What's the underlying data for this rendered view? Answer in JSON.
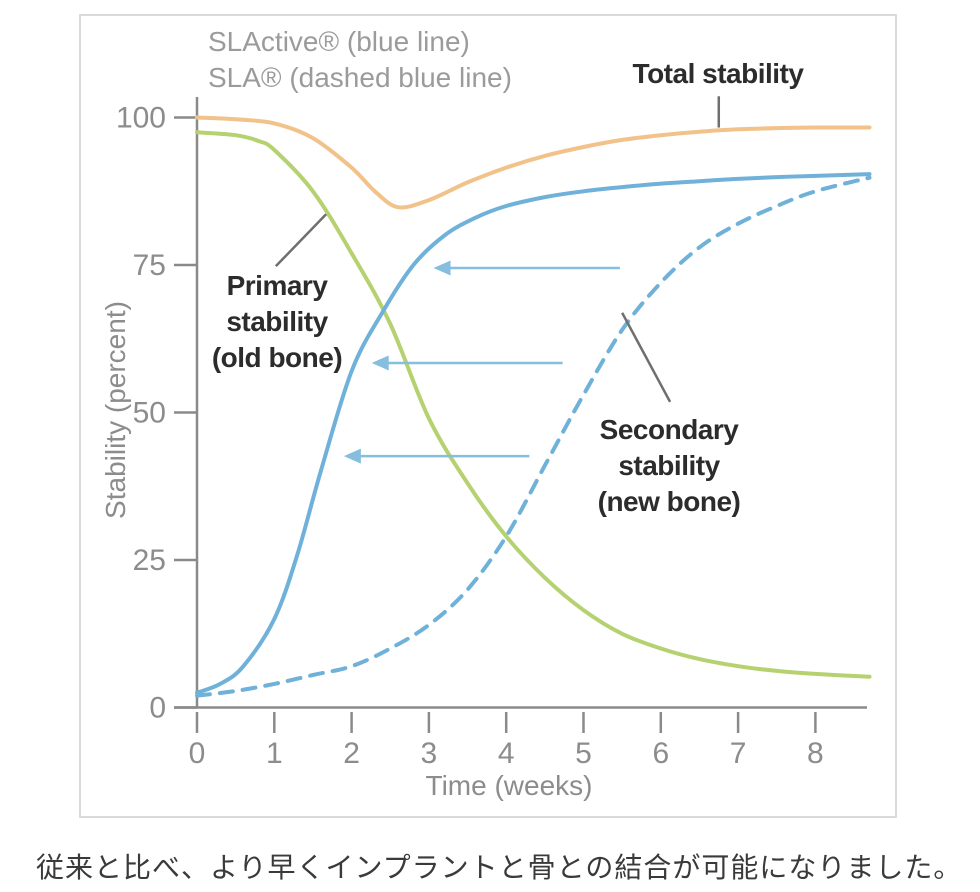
{
  "legend": {
    "line1": "SLActive® (blue line)",
    "line2": "SLA® (dashed blue line)",
    "text_color": "#9b9b9b"
  },
  "annotations": {
    "total": {
      "label": "Total stability"
    },
    "primary": {
      "lines": [
        "Primary",
        "stability",
        "(old bone)"
      ]
    },
    "secondary": {
      "lines": [
        "Secondary",
        "stability",
        "(new bone)"
      ]
    }
  },
  "axes": {
    "y_title": "Stability (percent)",
    "x_title": "Time (weeks)"
  },
  "caption": "従来と比べ、より早くインプラントと骨との結合が可能になりました。",
  "chart_data": {
    "type": "line",
    "title": "",
    "xlabel": "Time (weeks)",
    "ylabel": "Stability (percent)",
    "xlim": [
      0,
      8.7
    ],
    "ylim": [
      0,
      104
    ],
    "x_ticks": [
      0,
      1,
      2,
      3,
      4,
      5,
      6,
      7,
      8
    ],
    "y_ticks": [
      0,
      25,
      50,
      75,
      100
    ],
    "grid": false,
    "legend_position": "top-left",
    "axis_color": "#8a8a8a",
    "tick_label_color": "#8c8c8c",
    "leader_color": "#6f6f6f",
    "arrow_color": "#85bede",
    "series": [
      {
        "name": "Primary stability (old bone)",
        "color": "#b5d170",
        "dash": "solid",
        "points": [
          [
            0,
            97.5
          ],
          [
            0.5,
            97
          ],
          [
            0.8,
            96
          ],
          [
            1,
            94.5
          ],
          [
            1.5,
            87.5
          ],
          [
            2,
            77
          ],
          [
            2.5,
            65
          ],
          [
            3,
            49
          ],
          [
            3.5,
            38
          ],
          [
            4,
            29
          ],
          [
            4.5,
            22
          ],
          [
            5,
            16.5
          ],
          [
            5.5,
            12.5
          ],
          [
            6,
            10
          ],
          [
            6.5,
            8.2
          ],
          [
            7,
            7
          ],
          [
            7.5,
            6.2
          ],
          [
            8,
            5.7
          ],
          [
            8.7,
            5.2
          ]
        ]
      },
      {
        "name": "Total stability",
        "color": "#f1c289",
        "dash": "solid",
        "points": [
          [
            0,
            100
          ],
          [
            0.5,
            99.7
          ],
          [
            1,
            99
          ],
          [
            1.5,
            96.5
          ],
          [
            2,
            91.5
          ],
          [
            2.3,
            87.5
          ],
          [
            2.6,
            84.8
          ],
          [
            3,
            86
          ],
          [
            3.5,
            89
          ],
          [
            4,
            91.5
          ],
          [
            4.5,
            93.5
          ],
          [
            5,
            95
          ],
          [
            5.5,
            96.2
          ],
          [
            6,
            97
          ],
          [
            6.5,
            97.6
          ],
          [
            7,
            98
          ],
          [
            7.5,
            98.2
          ],
          [
            8,
            98.3
          ],
          [
            8.7,
            98.3
          ]
        ]
      },
      {
        "name": "SLA secondary stability (dashed blue line)",
        "color": "#6fb1d9",
        "dash": "dashed",
        "points": [
          [
            0,
            2
          ],
          [
            0.5,
            2.8
          ],
          [
            1,
            4
          ],
          [
            1.5,
            5.5
          ],
          [
            2,
            7
          ],
          [
            2.5,
            10
          ],
          [
            3,
            14
          ],
          [
            3.5,
            20
          ],
          [
            4,
            29
          ],
          [
            4.5,
            41
          ],
          [
            5,
            53
          ],
          [
            5.5,
            64
          ],
          [
            6,
            72
          ],
          [
            6.5,
            78
          ],
          [
            7,
            82
          ],
          [
            7.5,
            85
          ],
          [
            8,
            87.5
          ],
          [
            8.7,
            89.8
          ]
        ]
      },
      {
        "name": "SLActive secondary stability (blue line)",
        "color": "#6fb1d9",
        "dash": "solid",
        "points": [
          [
            0,
            2.5
          ],
          [
            0.3,
            4
          ],
          [
            0.6,
            7
          ],
          [
            1,
            15
          ],
          [
            1.3,
            26
          ],
          [
            1.6,
            40
          ],
          [
            2,
            57
          ],
          [
            2.4,
            67
          ],
          [
            2.8,
            75
          ],
          [
            3.2,
            80
          ],
          [
            3.6,
            83
          ],
          [
            4,
            85
          ],
          [
            4.5,
            86.5
          ],
          [
            5,
            87.5
          ],
          [
            5.5,
            88.2
          ],
          [
            6,
            88.8
          ],
          [
            6.5,
            89.2
          ],
          [
            7,
            89.6
          ],
          [
            7.5,
            89.9
          ],
          [
            8,
            90.1
          ],
          [
            8.7,
            90.4
          ]
        ]
      }
    ],
    "arrows": [
      {
        "pct": 74.5,
        "from_week": 5.47,
        "to_week": 3.06
      },
      {
        "pct": 58.4,
        "from_week": 4.73,
        "to_week": 2.26
      },
      {
        "pct": 42.6,
        "from_week": 4.3,
        "to_week": 1.9
      }
    ],
    "leaders": [
      {
        "x1": 6.75,
        "y1": 103.6,
        "x2": 6.75,
        "y2": 98.3
      },
      {
        "x1": 1.02,
        "y1": 74.8,
        "x2": 1.67,
        "y2": 83.6
      },
      {
        "x1": 5.5,
        "y1": 66.9,
        "x2": 6.12,
        "y2": 51.8
      }
    ]
  }
}
